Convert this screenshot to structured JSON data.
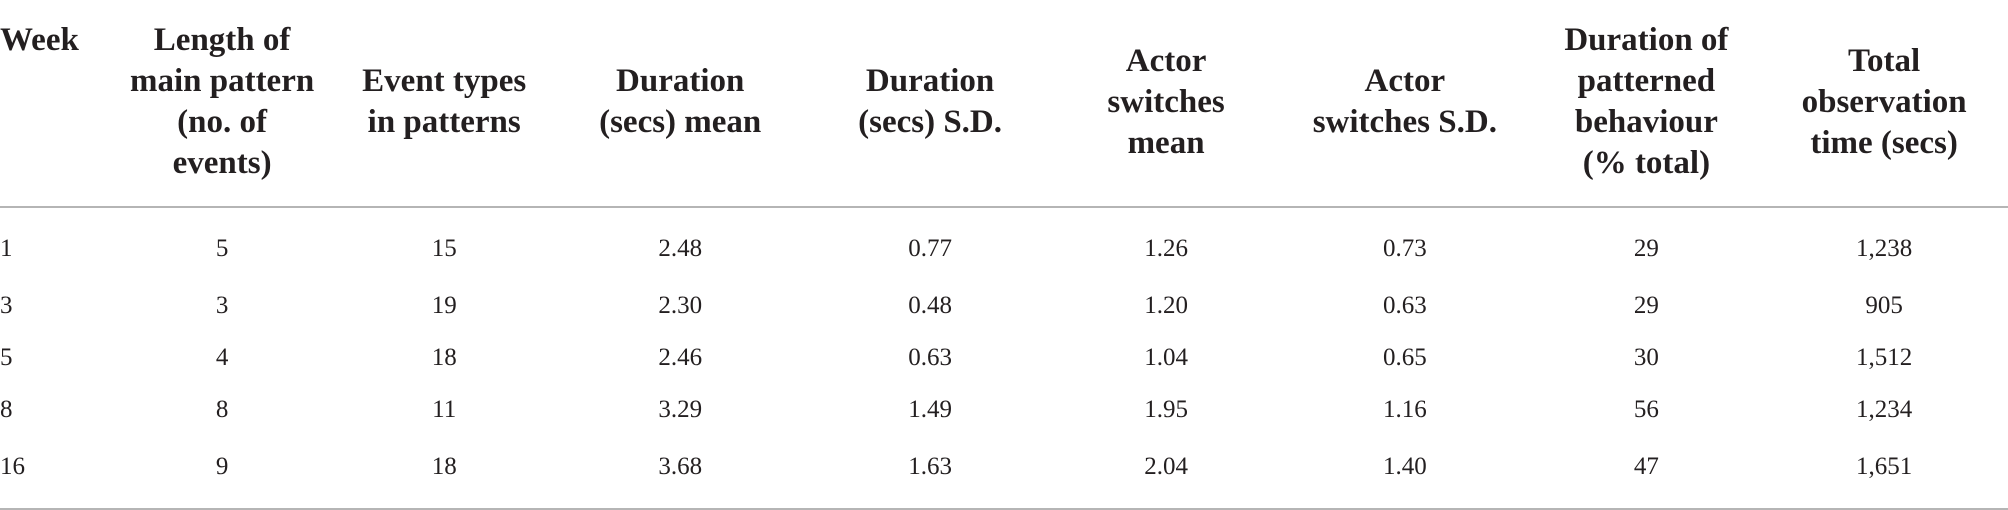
{
  "table": {
    "headers": [
      [
        "Week"
      ],
      [
        "Length of",
        "main pattern",
        "(no. of",
        "events)"
      ],
      [
        "Event types",
        "in patterns"
      ],
      [
        "Duration",
        "(secs) mean"
      ],
      [
        "Duration",
        "(secs) S.D."
      ],
      [
        "Actor",
        "switches",
        "mean"
      ],
      [
        "Actor",
        "switches S.D."
      ],
      [
        "Duration of",
        "patterned",
        "behaviour",
        "(% total)"
      ],
      [
        "Total",
        "observation",
        "time (secs)"
      ]
    ],
    "rows": [
      [
        "1",
        "5",
        "15",
        "2.48",
        "0.77",
        "1.26",
        "0.73",
        "29",
        "1,238"
      ],
      [
        "3",
        "3",
        "19",
        "2.30",
        "0.48",
        "1.20",
        "0.63",
        "29",
        "905"
      ],
      [
        "5",
        "4",
        "18",
        "2.46",
        "0.63",
        "1.04",
        "0.65",
        "30",
        "1,512"
      ],
      [
        "8",
        "8",
        "11",
        "3.29",
        "1.49",
        "1.95",
        "1.16",
        "56",
        "1,234"
      ],
      [
        "16",
        "9",
        "18",
        "3.68",
        "1.63",
        "2.04",
        "1.40",
        "47",
        "1,651"
      ]
    ]
  }
}
